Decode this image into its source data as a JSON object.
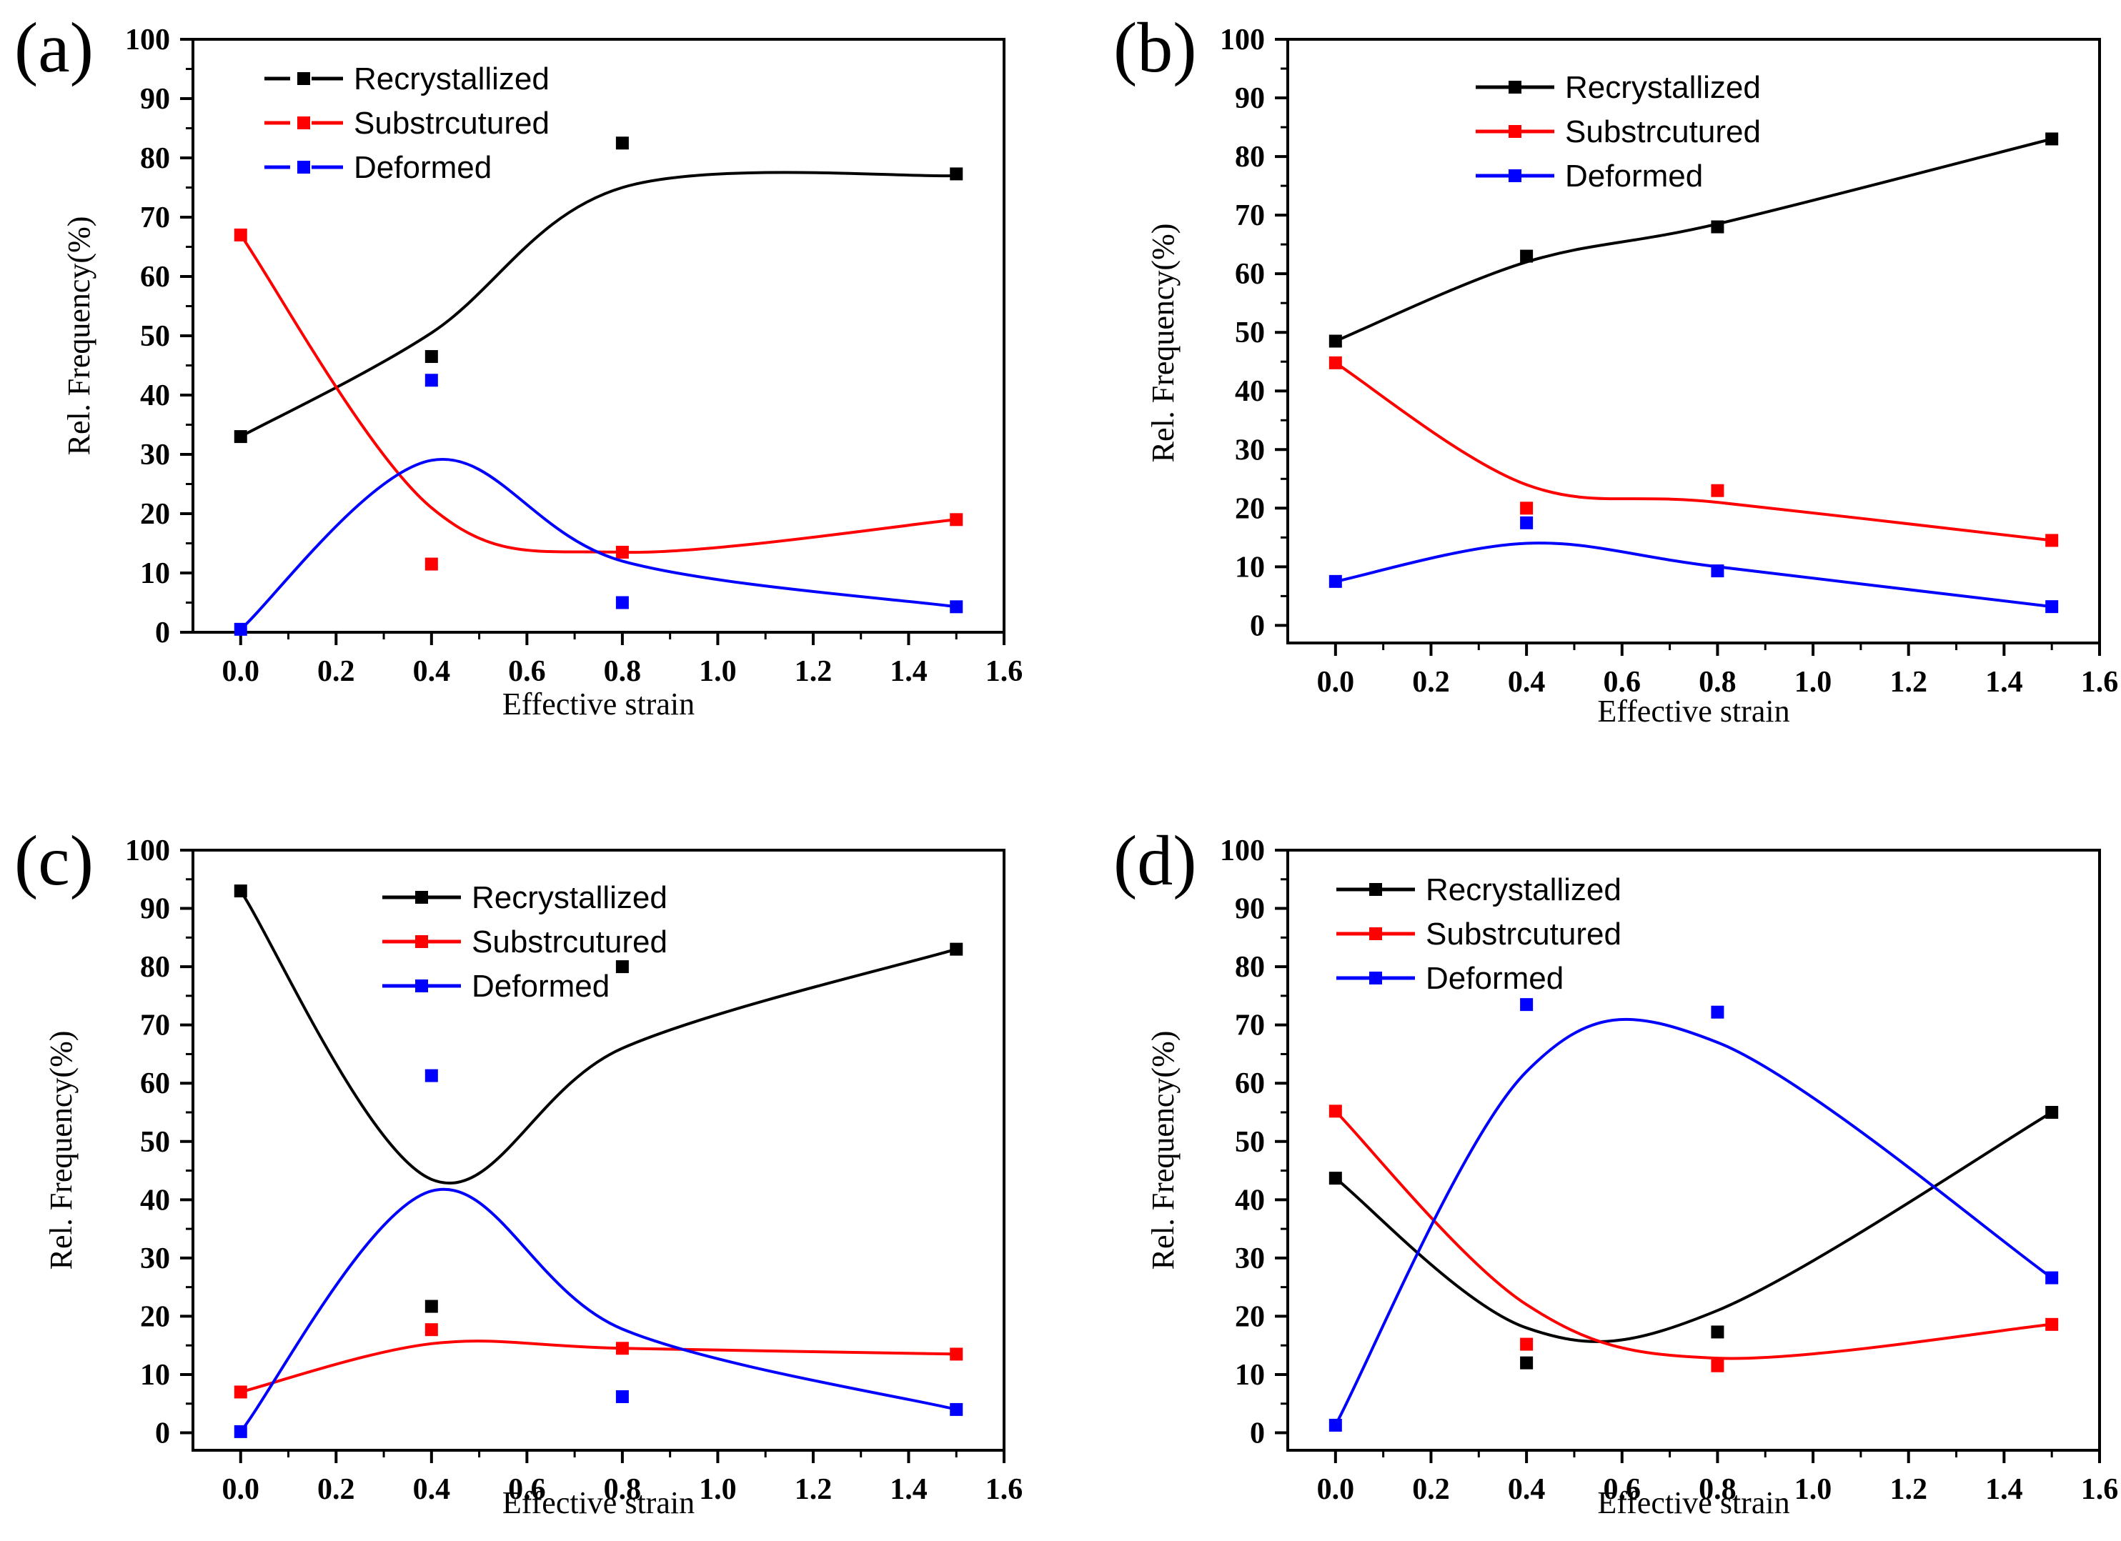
{
  "figure": {
    "x_values": [
      0.0,
      0.4,
      0.8,
      1.5
    ],
    "series_colors": {
      "Recrystallized": "#000000",
      "Substrcutured": "#ff0000",
      "Deformed": "#0000ff"
    }
  },
  "chart_data": [
    {
      "type": "scatter",
      "panel_label": "(a)",
      "title": "",
      "xlabel": "Effective strain",
      "ylabel": "Rel. Frequency(%)",
      "xlim": [
        -0.1,
        1.6
      ],
      "ylim": [
        0,
        100
      ],
      "x_ticks": [
        "0.0",
        "0.2",
        "0.4",
        "0.6",
        "0.8",
        "1.0",
        "1.2",
        "1.4",
        "1.6"
      ],
      "y_ticks": [
        "0",
        "10",
        "20",
        "30",
        "40",
        "50",
        "60",
        "70",
        "80",
        "90",
        "100"
      ],
      "legend_placement": "top-left",
      "legend_style": "dashed",
      "x": [
        0.0,
        0.4,
        0.8,
        1.5
      ],
      "series": [
        {
          "name": "Recrystallized",
          "color": "#000000",
          "values": [
            33,
            46.5,
            82.5,
            77.3
          ],
          "fit": [
            33,
            50.5,
            75,
            77
          ]
        },
        {
          "name": "Substrcutured",
          "color": "#ff0000",
          "values": [
            67,
            11.5,
            13.5,
            19
          ],
          "fit": [
            67,
            21,
            13.5,
            19
          ]
        },
        {
          "name": "Deformed",
          "color": "#0000ff",
          "values": [
            0.5,
            42.5,
            5,
            4.3
          ],
          "fit": [
            0.5,
            29,
            12,
            4.3
          ]
        }
      ]
    },
    {
      "type": "scatter",
      "panel_label": "(b)",
      "title": "",
      "xlabel": "Effective strain",
      "ylabel": "Rel. Frequency(%)",
      "xlim": [
        -0.1,
        1.6
      ],
      "ylim": [
        -3,
        100
      ],
      "x_ticks": [
        "0.0",
        "0.2",
        "0.4",
        "0.6",
        "0.8",
        "1.0",
        "1.2",
        "1.4",
        "1.6"
      ],
      "y_ticks": [
        "0",
        "10",
        "20",
        "30",
        "40",
        "50",
        "60",
        "70",
        "80",
        "90",
        "100"
      ],
      "legend_placement": "top-left",
      "legend_style": "solid",
      "x": [
        0.0,
        0.4,
        0.8,
        1.5
      ],
      "series": [
        {
          "name": "Recrystallized",
          "color": "#000000",
          "values": [
            48.5,
            63,
            68,
            83
          ],
          "fit": [
            48.5,
            62,
            68.5,
            83
          ]
        },
        {
          "name": "Substrcutured",
          "color": "#ff0000",
          "values": [
            44.8,
            20,
            23,
            14.5
          ],
          "fit": [
            44.8,
            24,
            21,
            14.5
          ]
        },
        {
          "name": "Deformed",
          "color": "#0000ff",
          "values": [
            7.5,
            17.5,
            9.3,
            3.2
          ],
          "fit": [
            7.5,
            14,
            10,
            3.2
          ]
        }
      ]
    },
    {
      "type": "scatter",
      "panel_label": "(c)",
      "title": "",
      "xlabel": "Effective strain",
      "ylabel": "Rel. Frequency(%)",
      "xlim": [
        -0.1,
        1.6
      ],
      "ylim": [
        -3,
        100
      ],
      "x_ticks": [
        "0.0",
        "0.2",
        "0.4",
        "0.6",
        "0.8",
        "1.0",
        "1.2",
        "1.4",
        "1.6"
      ],
      "y_ticks": [
        "0",
        "10",
        "20",
        "30",
        "40",
        "50",
        "60",
        "70",
        "80",
        "90",
        "100"
      ],
      "legend_placement": "top-right",
      "legend_style": "solid",
      "x": [
        0.0,
        0.4,
        0.8,
        1.5
      ],
      "series": [
        {
          "name": "Recrystallized",
          "color": "#000000",
          "values": [
            93,
            21.7,
            80,
            83
          ],
          "fit": [
            93,
            43.5,
            66,
            83
          ]
        },
        {
          "name": "Substrcutured",
          "color": "#ff0000",
          "values": [
            7,
            17.7,
            14.5,
            13.5
          ],
          "fit": [
            7,
            15.3,
            14.5,
            13.5
          ]
        },
        {
          "name": "Deformed",
          "color": "#0000ff",
          "values": [
            0.2,
            61.3,
            6.2,
            4
          ],
          "fit": [
            0.2,
            41.5,
            17.8,
            4
          ]
        }
      ]
    },
    {
      "type": "scatter",
      "panel_label": "(d)",
      "title": "",
      "xlabel": "Effective strain",
      "ylabel": "Rel. Frequency(%)",
      "xlim": [
        -0.1,
        1.6
      ],
      "ylim": [
        -3,
        100
      ],
      "x_ticks": [
        "0.0",
        "0.2",
        "0.4",
        "0.6",
        "0.8",
        "1.0",
        "1.2",
        "1.4",
        "1.6"
      ],
      "y_ticks": [
        "0",
        "10",
        "20",
        "30",
        "40",
        "50",
        "60",
        "70",
        "80",
        "90",
        "100"
      ],
      "legend_placement": "top-left",
      "legend_style": "solid",
      "x": [
        0.0,
        0.4,
        0.8,
        1.5
      ],
      "series": [
        {
          "name": "Recrystallized",
          "color": "#000000",
          "values": [
            43.7,
            12,
            17.3,
            55
          ],
          "fit": [
            43.7,
            18,
            21,
            55
          ]
        },
        {
          "name": "Substrcutured",
          "color": "#ff0000",
          "values": [
            55.2,
            15.2,
            11.5,
            18.6
          ],
          "fit": [
            55.2,
            22,
            12.8,
            18.6
          ]
        },
        {
          "name": "Deformed",
          "color": "#0000ff",
          "values": [
            1.3,
            73.5,
            72.2,
            26.6
          ],
          "fit": [
            1.3,
            62,
            67,
            26.6
          ]
        }
      ]
    }
  ]
}
